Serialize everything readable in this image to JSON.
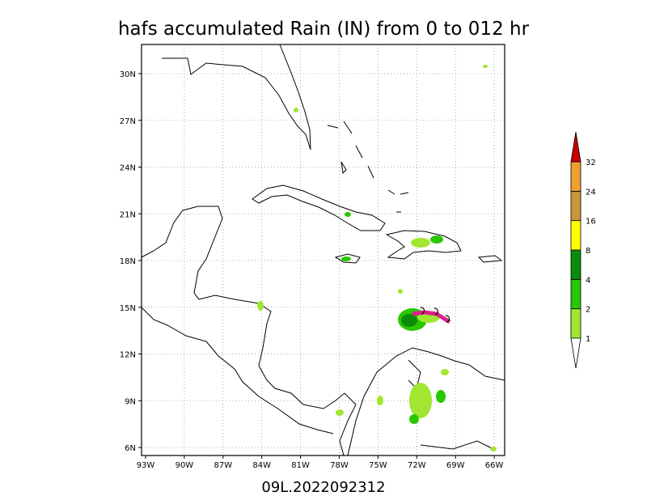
{
  "title": "hafs accumulated Rain (IN) from 0 to 012 hr",
  "footer": "09L.2022092312",
  "lon_labels": [
    "93W",
    "90W",
    "87W",
    "84W",
    "81W",
    "78W",
    "75W",
    "72W",
    "69W",
    "66W"
  ],
  "lat_labels": [
    "30N",
    "27N",
    "24N",
    "21N",
    "18N",
    "15N",
    "12N",
    "9N",
    "6N"
  ],
  "colorbar": {
    "levels": [
      1,
      2,
      4,
      8,
      16,
      24,
      32
    ]
  }
}
